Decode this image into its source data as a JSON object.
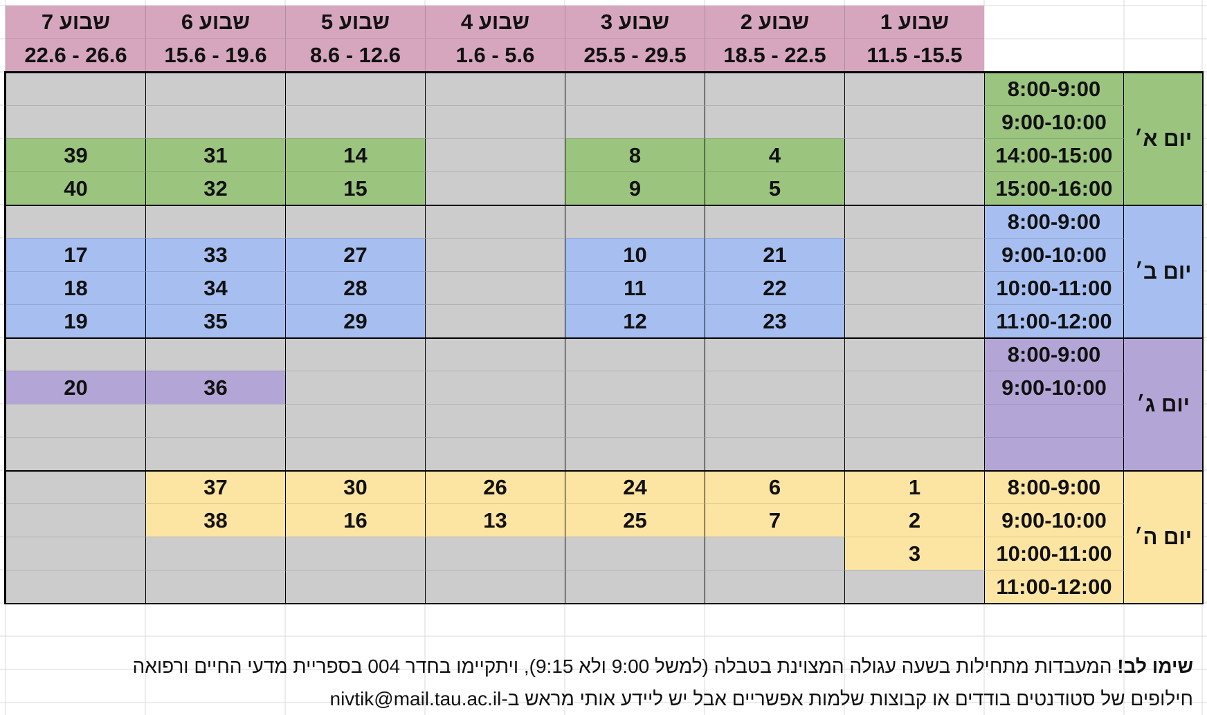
{
  "colors": {
    "header": "#d5a6bd",
    "gray": "#cccccc",
    "sunday": "#9bc47f",
    "monday": "#a7bff0",
    "tuesday": "#b3a6d6",
    "thursday": "#fce5a3",
    "gridline": "#d9d9d9",
    "border": "#000000"
  },
  "weeks": [
    {
      "label": "שבוע 1",
      "dates": "11.5 -15.5"
    },
    {
      "label": "שבוע 2",
      "dates": "18.5 - 22.5"
    },
    {
      "label": "שבוע 3",
      "dates": "25.5 - 29.5"
    },
    {
      "label": "שבוע 4",
      "dates": "1.6 - 5.6"
    },
    {
      "label": "שבוע 5",
      "dates": "8.6 - 12.6"
    },
    {
      "label": "שבוע 6",
      "dates": "15.6 - 19.6"
    },
    {
      "label": "שבוע 7",
      "dates": "22.6 - 26.6"
    }
  ],
  "days": [
    {
      "name": "יום א׳",
      "color_key": "sunday",
      "slots": [
        {
          "time": "8:00-9:00",
          "cells": [
            "",
            "",
            "",
            "",
            "",
            "",
            ""
          ],
          "hl": [
            0,
            0,
            0,
            0,
            0,
            0,
            0
          ]
        },
        {
          "time": "9:00-10:00",
          "cells": [
            "",
            "",
            "",
            "",
            "",
            "",
            ""
          ],
          "hl": [
            0,
            0,
            0,
            0,
            0,
            0,
            0
          ]
        },
        {
          "time": "14:00-15:00",
          "cells": [
            "",
            "4",
            "8",
            "",
            "14",
            "31",
            "39"
          ],
          "hl": [
            0,
            1,
            1,
            0,
            1,
            1,
            1
          ]
        },
        {
          "time": "15:00-16:00",
          "cells": [
            "",
            "5",
            "9",
            "",
            "15",
            "32",
            "40"
          ],
          "hl": [
            0,
            1,
            1,
            0,
            1,
            1,
            1
          ]
        }
      ]
    },
    {
      "name": "יום ב׳",
      "color_key": "monday",
      "slots": [
        {
          "time": "8:00-9:00",
          "cells": [
            "",
            "",
            "",
            "",
            "",
            "",
            ""
          ],
          "hl": [
            0,
            0,
            0,
            0,
            0,
            0,
            0
          ]
        },
        {
          "time": "9:00-10:00",
          "cells": [
            "",
            "21",
            "10",
            "",
            "27",
            "33",
            "17"
          ],
          "hl": [
            0,
            1,
            1,
            0,
            1,
            1,
            1
          ]
        },
        {
          "time": "10:00-11:00",
          "cells": [
            "",
            "22",
            "11",
            "",
            "28",
            "34",
            "18"
          ],
          "hl": [
            0,
            1,
            1,
            0,
            1,
            1,
            1
          ]
        },
        {
          "time": "11:00-12:00",
          "cells": [
            "",
            "23",
            "12",
            "",
            "29",
            "35",
            "19"
          ],
          "hl": [
            0,
            1,
            1,
            0,
            1,
            1,
            1
          ]
        }
      ]
    },
    {
      "name": "יום ג׳",
      "color_key": "tuesday",
      "slots": [
        {
          "time": "8:00-9:00",
          "cells": [
            "",
            "",
            "",
            "",
            "",
            "",
            ""
          ],
          "hl": [
            0,
            0,
            0,
            0,
            0,
            0,
            0
          ]
        },
        {
          "time": "9:00-10:00",
          "cells": [
            "",
            "",
            "",
            "",
            "",
            "36",
            "20"
          ],
          "hl": [
            0,
            0,
            0,
            0,
            0,
            1,
            1
          ]
        },
        {
          "time": "",
          "cells": [
            "",
            "",
            "",
            "",
            "",
            "",
            ""
          ],
          "hl": [
            0,
            0,
            0,
            0,
            0,
            0,
            0
          ]
        },
        {
          "time": "",
          "cells": [
            "",
            "",
            "",
            "",
            "",
            "",
            ""
          ],
          "hl": [
            0,
            0,
            0,
            0,
            0,
            0,
            0
          ]
        }
      ]
    },
    {
      "name": "יום ה׳",
      "color_key": "thursday",
      "slots": [
        {
          "time": "8:00-9:00",
          "cells": [
            "1",
            "6",
            "24",
            "26",
            "30",
            "37",
            ""
          ],
          "hl": [
            1,
            1,
            1,
            1,
            1,
            1,
            0
          ]
        },
        {
          "time": "9:00-10:00",
          "cells": [
            "2",
            "7",
            "25",
            "13",
            "16",
            "38",
            ""
          ],
          "hl": [
            1,
            1,
            1,
            1,
            1,
            1,
            0
          ]
        },
        {
          "time": "10:00-11:00",
          "cells": [
            "3",
            "",
            "",
            "",
            "",
            "",
            ""
          ],
          "hl": [
            1,
            0,
            0,
            0,
            0,
            0,
            0
          ]
        },
        {
          "time": "11:00-12:00",
          "cells": [
            "",
            "",
            "",
            "",
            "",
            "",
            ""
          ],
          "hl": [
            0,
            0,
            0,
            0,
            0,
            0,
            0
          ]
        }
      ]
    }
  ],
  "notes": {
    "line1_bold": "שימו לב!",
    "line1_rest": " המעבדות מתחילות בשעה עגולה המצוינת בטבלה (למשל 9:00 ולא 9:15), ויתקיימו בחדר 004 בספריית מדעי החיים ורפואה",
    "line2": "חילופים של סטודנטים בודדים או קבוצות שלמות אפשריים אבל יש ליידע אותי מראש ב-nivtik@mail.tau.ac.il"
  }
}
